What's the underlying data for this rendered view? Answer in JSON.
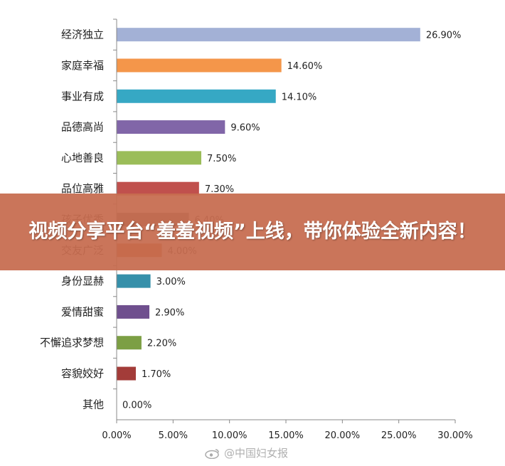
{
  "chart_data": {
    "type": "bar",
    "orientation": "horizontal",
    "categories": [
      "经济独立",
      "家庭幸福",
      "事业有成",
      "品德高尚",
      "心地善良",
      "品位高雅",
      "孩子优秀",
      "交友广泛",
      "身份显赫",
      "爱情甜蜜",
      "不懈追求梦想",
      "容貌姣好",
      "其他"
    ],
    "values": [
      26.9,
      14.6,
      14.1,
      9.6,
      7.5,
      7.3,
      6.4,
      4.0,
      3.0,
      2.9,
      2.2,
      1.7,
      0.0
    ],
    "value_labels": [
      "26.90%",
      "14.60%",
      "14.10%",
      "9.60%",
      "7.50%",
      "7.30%",
      "6.40%",
      "4.00%",
      "3.00%",
      "2.90%",
      "2.20%",
      "1.70%",
      "0.00%"
    ],
    "colors": [
      "#a3b1d6",
      "#f4964a",
      "#36a8c4",
      "#8166a8",
      "#9bbd59",
      "#c0504d",
      "#6b6b6b",
      "#c0501c",
      "#3690aa",
      "#6f4f8e",
      "#7c9f44",
      "#a33c39",
      "#4f81bd"
    ],
    "xlim": [
      0,
      30
    ],
    "x_ticks": [
      0,
      5,
      10,
      15,
      20,
      25,
      30
    ],
    "x_tick_labels": [
      "0.00%",
      "5.00%",
      "10.00%",
      "15.00%",
      "20.00%",
      "25.00%",
      "30.00%"
    ],
    "title": "",
    "xlabel": "",
    "ylabel": "",
    "grid": false,
    "legend": "none"
  },
  "banner": {
    "text": "视频分享平台“羞羞视频”上线，带你体验全新内容！",
    "background": "#c76c50"
  },
  "watermark": {
    "text": "@中国妇女报",
    "icon": "weibo-icon"
  }
}
